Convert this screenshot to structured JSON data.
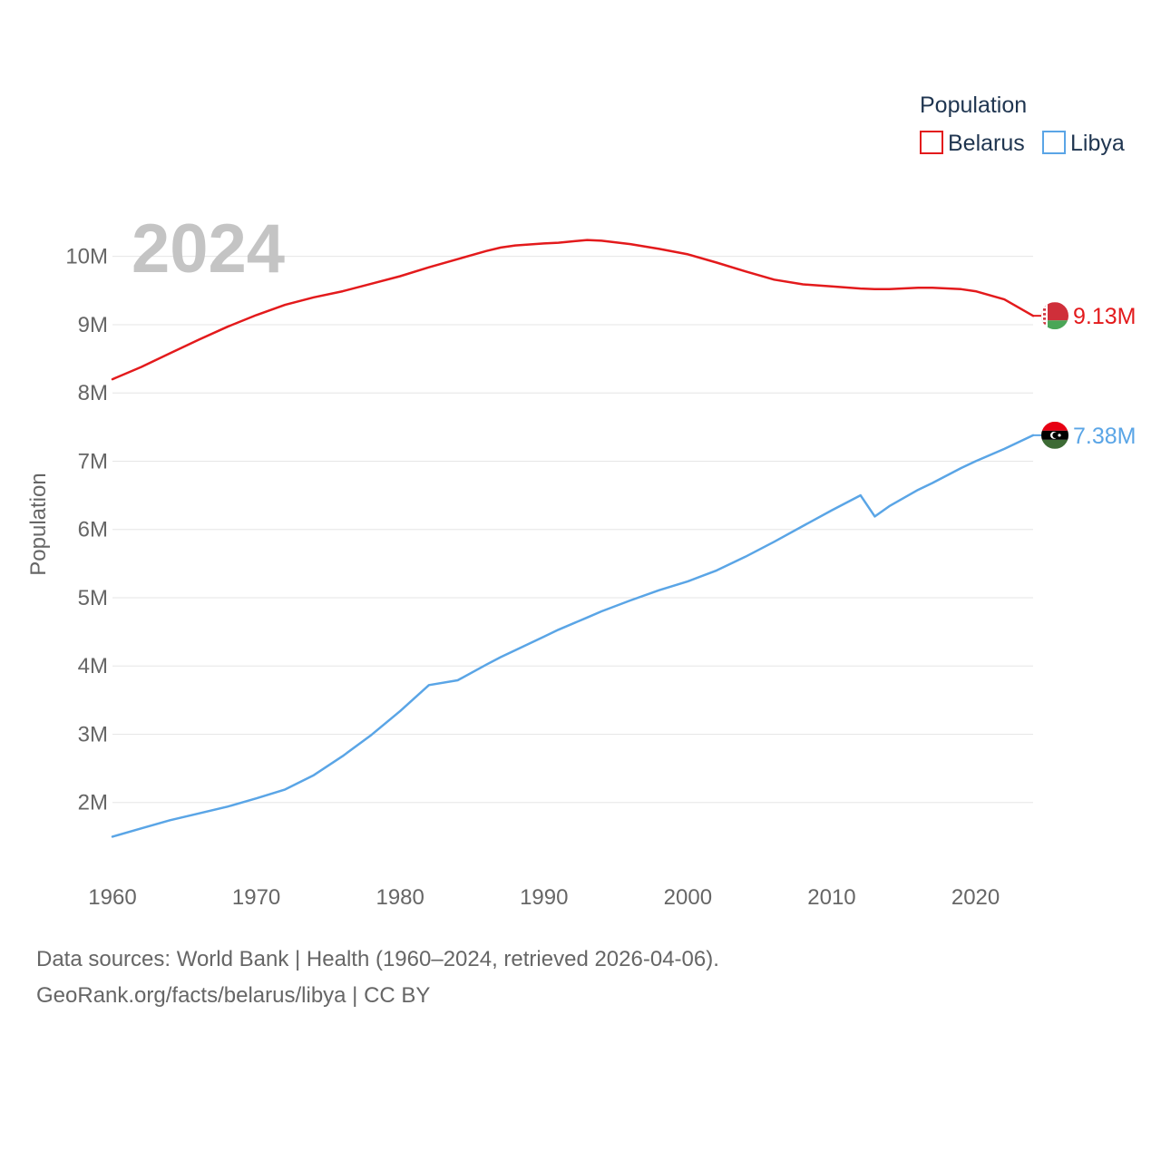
{
  "chart_data": {
    "type": "line",
    "legend": {
      "title": "Population",
      "position": "top-right"
    },
    "current_year": "2024",
    "ylabel": "Population",
    "xlabel": "",
    "xlim": [
      1960,
      2024
    ],
    "ylim": [
      1000000,
      10700000
    ],
    "x_ticks": [
      1960,
      1970,
      1980,
      1990,
      2000,
      2010,
      2020
    ],
    "y_ticks": [
      {
        "value": 2000000,
        "label": "2M"
      },
      {
        "value": 3000000,
        "label": "3M"
      },
      {
        "value": 4000000,
        "label": "4M"
      },
      {
        "value": 5000000,
        "label": "5M"
      },
      {
        "value": 6000000,
        "label": "6M"
      },
      {
        "value": 7000000,
        "label": "7M"
      },
      {
        "value": 8000000,
        "label": "8M"
      },
      {
        "value": 9000000,
        "label": "9M"
      },
      {
        "value": 10000000,
        "label": "10M"
      }
    ],
    "x": [
      1960,
      1962,
      1964,
      1966,
      1968,
      1970,
      1972,
      1974,
      1976,
      1978,
      1980,
      1982,
      1984,
      1986,
      1987,
      1988,
      1990,
      1991,
      1993,
      1994,
      1996,
      1998,
      2000,
      2002,
      2004,
      2006,
      2008,
      2010,
      2012,
      2013,
      2014,
      2016,
      2017,
      2019,
      2020,
      2022,
      2024
    ],
    "series": [
      {
        "name": "Belarus",
        "color": "#e31a1c",
        "flag": "belarus-flag",
        "end_label": "9.13M",
        "values": [
          8200000,
          8380000,
          8580000,
          8780000,
          8970000,
          9140000,
          9290000,
          9400000,
          9490000,
          9600000,
          9710000,
          9840000,
          9960000,
          10080000,
          10130000,
          10160000,
          10190000,
          10200000,
          10240000,
          10230000,
          10180000,
          10110000,
          10030000,
          9910000,
          9780000,
          9660000,
          9590000,
          9560000,
          9530000,
          9520000,
          9520000,
          9540000,
          9540000,
          9520000,
          9490000,
          9370000,
          9130000
        ]
      },
      {
        "name": "Libya",
        "color": "#5aa5e6",
        "flag": "libya-flag",
        "end_label": "7.38M",
        "values": [
          1500000,
          1620000,
          1740000,
          1840000,
          1940000,
          2060000,
          2190000,
          2400000,
          2680000,
          2990000,
          3340000,
          3720000,
          3790000,
          4020000,
          4130000,
          4230000,
          4430000,
          4530000,
          4710000,
          4800000,
          4960000,
          5110000,
          5240000,
          5400000,
          5600000,
          5820000,
          6050000,
          6280000,
          6500000,
          6190000,
          6340000,
          6580000,
          6680000,
          6900000,
          7000000,
          7180000,
          7380000
        ]
      }
    ]
  },
  "footer": {
    "line1": "Data sources: World Bank | Health (1960–2024, retrieved 2026-04-06).",
    "line2": "GeoRank.org/facts/belarus/libya | CC BY"
  }
}
